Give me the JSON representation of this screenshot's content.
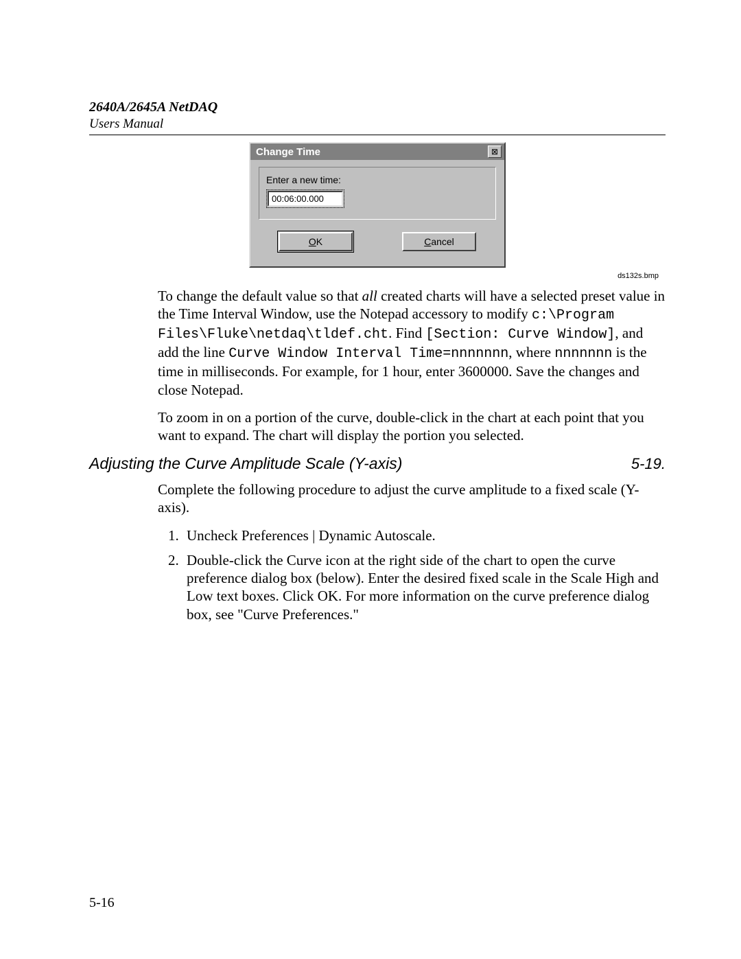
{
  "header": {
    "title": "2640A/2645A NetDAQ",
    "subtitle": "Users Manual"
  },
  "dialog": {
    "title": "Change Time",
    "close_glyph": "⊠",
    "prompt": "Enter a new time:",
    "input_value": "00:06:00.000",
    "ok_label_pre": "O",
    "ok_label_rest": "K",
    "cancel_label_pre": "C",
    "cancel_label_rest": "ancel",
    "caption": "ds132s.bmp",
    "colors": {
      "face": "#c0c0c0",
      "titlebar": "#808080",
      "titlebar_text": "#ffffff",
      "light": "#ffffff",
      "shadow": "#404040",
      "highlight": "#e0e0e0",
      "input_bg": "#ffffff",
      "text": "#000000"
    }
  },
  "body": {
    "p1_a": "To change the default value so that ",
    "p1_all": "all",
    "p1_b": " created charts will have a selected preset value in the Time Interval Window, use the Notepad accessory to modify ",
    "p1_path": "c:\\Program Files\\Fluke\\netdaq\\tldef.cht",
    "p1_c": ". Find ",
    "p1_section": "[Section: Curve Window]",
    "p1_d": ", and add the line ",
    "p1_line": "Curve Window Interval Time=nnnnnnn",
    "p1_e": ", where ",
    "p1_nnn": "nnnnnnn",
    "p1_f": " is the time in milliseconds. For example, for 1 hour, enter 3600000. Save the changes and close Notepad.",
    "p2": "To zoom in on a portion of the curve, double-click in the chart at each point that you want to expand. The chart will display the portion you selected.",
    "section_title": "Adjusting the Curve Amplitude Scale (Y-axis)",
    "section_num": "5-19.",
    "p3": "Complete the following procedure to adjust the curve amplitude to a fixed scale (Y-axis).",
    "steps": [
      "Uncheck Preferences | Dynamic Autoscale.",
      "Double-click the Curve icon at the right side of the chart to open the curve preference dialog box (below). Enter the desired fixed scale in the Scale High and Low text boxes. Click OK. For more information on the curve preference dialog box, see \"Curve Preferences.\""
    ]
  },
  "page_number": "5-16"
}
